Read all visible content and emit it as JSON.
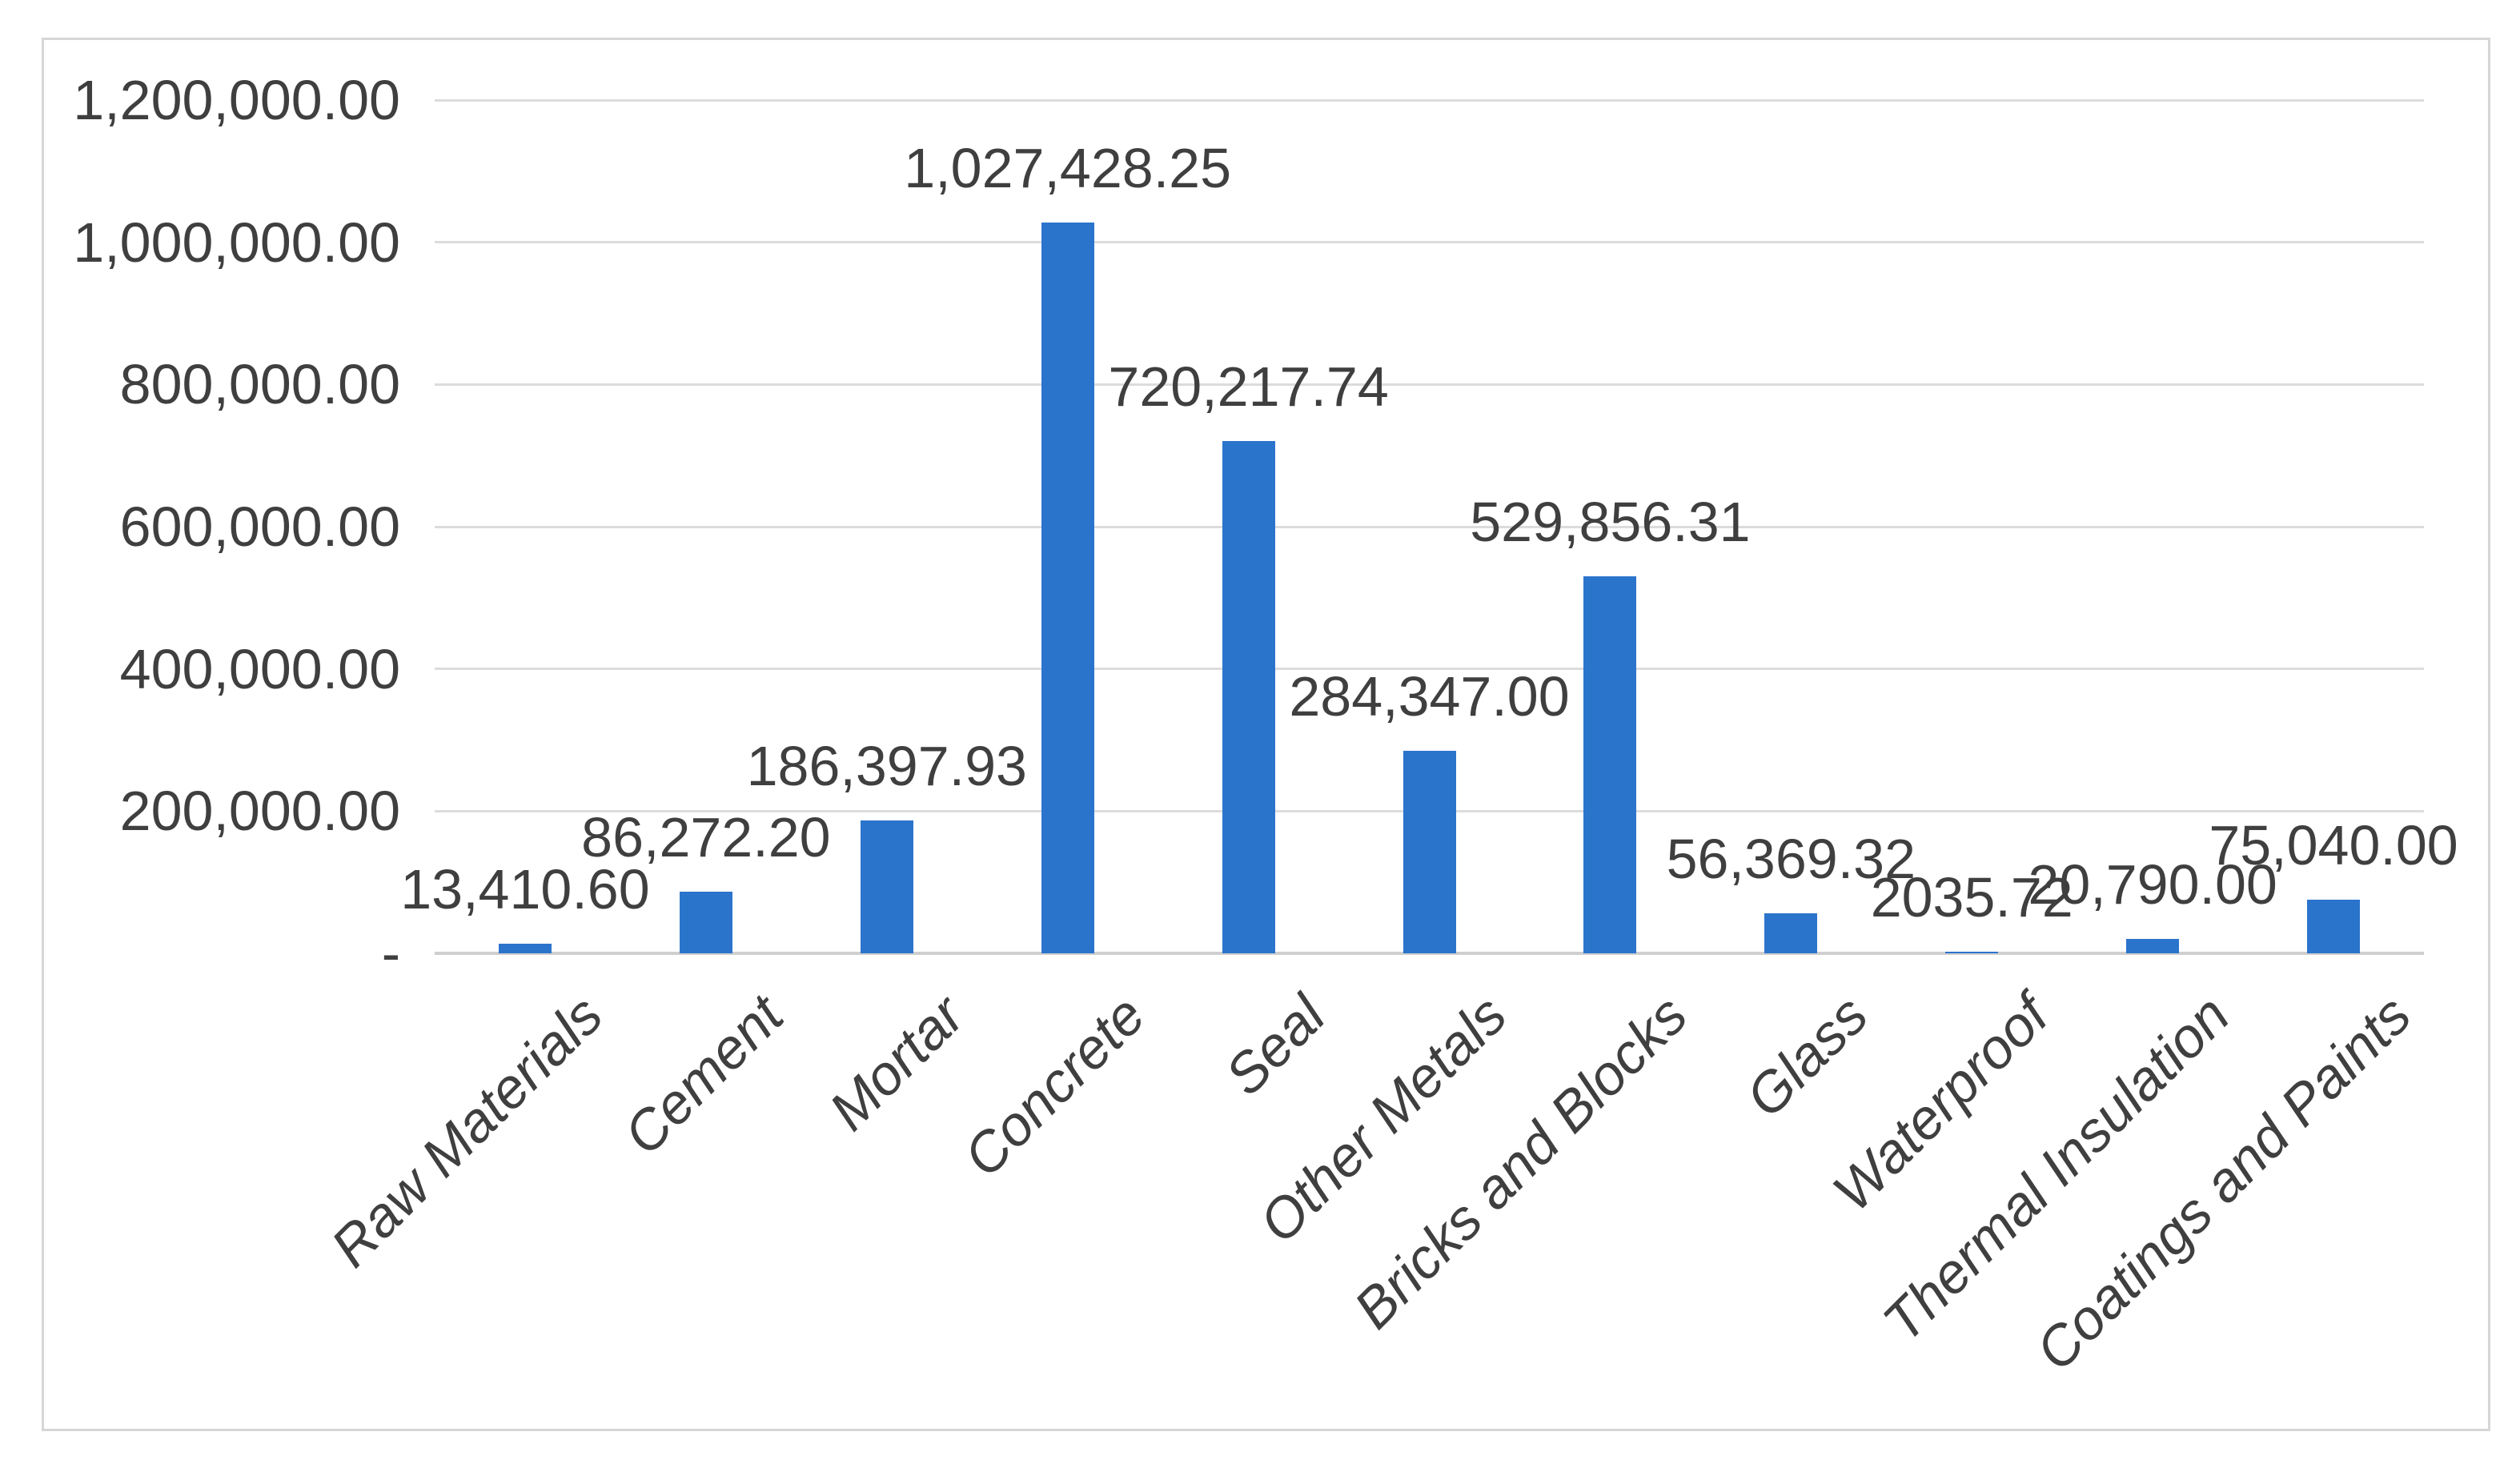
{
  "chart_data": {
    "type": "bar",
    "title": "",
    "xlabel": "",
    "ylabel": "",
    "legend": "none",
    "grid": true,
    "ylim": [
      0,
      1200000
    ],
    "categories": [
      "Raw Materials",
      "Cement",
      "Mortar",
      "Concrete",
      "Seal",
      "Other Metals",
      "Bricks and Blocks",
      "Glass",
      "Waterproof",
      "Thermal Insulation",
      "Coatings and Paints"
    ],
    "values": [
      13410.6,
      86272.2,
      186397.93,
      1027428.25,
      720217.74,
      284347.0,
      529856.31,
      56369.32,
      2035.72,
      20790.0,
      75040.0
    ],
    "data_labels": [
      "13,410.60",
      "86,272.20",
      "186,397.93",
      "1,027,428.25",
      "720,217.74",
      "284,347.00",
      "529,856.31",
      "56,369.32",
      "2035.72",
      "20,790.00",
      "75,040.00"
    ],
    "y_ticks": [
      {
        "value": 1200000,
        "label": "1,200,000.00"
      },
      {
        "value": 1000000,
        "label": "1,000,000.00"
      },
      {
        "value": 800000,
        "label": "800,000.00"
      },
      {
        "value": 600000,
        "label": "600,000.00"
      },
      {
        "value": 400000,
        "label": "400,000.00"
      },
      {
        "value": 200000,
        "label": "200,000.00"
      },
      {
        "value": 0,
        "label": "-"
      }
    ]
  },
  "colors": {
    "bar": "#2B74CC",
    "gridline": "#DCDCDC",
    "axis_line": "#CFCFCF",
    "frame_border": "#D6D6D6",
    "text": "#3F3F3F",
    "background": "#FFFFFF"
  }
}
